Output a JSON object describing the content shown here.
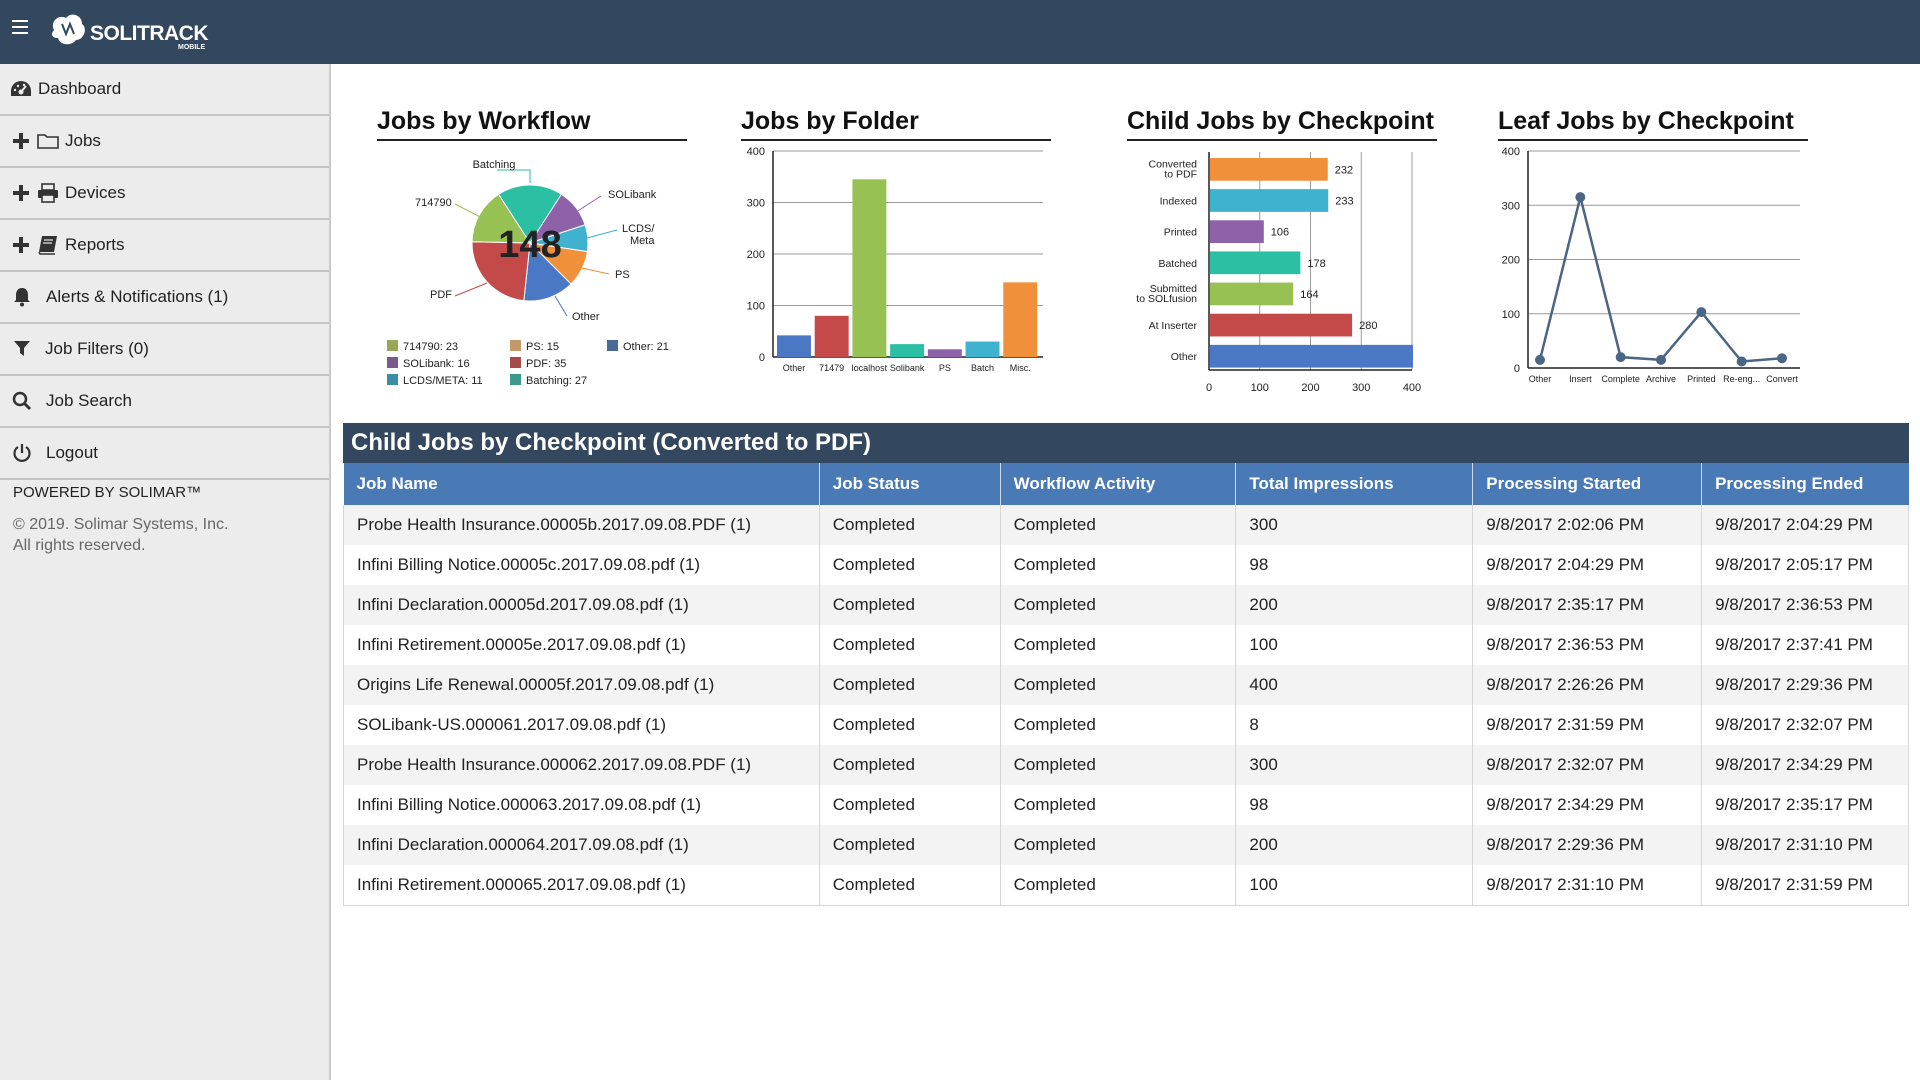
{
  "app": {
    "brand": "SOLITRACK",
    "brand_sub": "MOBILE"
  },
  "sidebar": {
    "items": [
      {
        "label": "Dashboard",
        "icon": "dashboard-icon"
      },
      {
        "label": "Jobs",
        "icon": "folder-icon"
      },
      {
        "label": "Devices",
        "icon": "printer-icon"
      },
      {
        "label": "Reports",
        "icon": "book-icon"
      },
      {
        "label": "Alerts & Notifications (1)",
        "icon": "bell-icon"
      },
      {
        "label": "Job Filters (0)",
        "icon": "filter-icon"
      },
      {
        "label": "Job Search",
        "icon": "search-icon"
      },
      {
        "label": "Logout",
        "icon": "power-icon"
      }
    ],
    "powered": "POWERED BY SOLIMAR™",
    "copyright_line1": "© 2019. Solimar Systems, Inc.",
    "copyright_line2": "All rights reserved."
  },
  "charts": {
    "workflow": {
      "title": "Jobs by Workflow",
      "center_value": "148"
    },
    "folder": {
      "title": "Jobs by Folder"
    },
    "child": {
      "title": "Child Jobs by Checkpoint"
    },
    "leaf": {
      "title": "Leaf Jobs by Checkpoint"
    }
  },
  "chart_data": [
    {
      "type": "pie",
      "title": "Jobs by Workflow",
      "center_label": "148",
      "slices": [
        {
          "label": "Batching",
          "value": 27,
          "color": "#2bbfa4"
        },
        {
          "label": "SOLibank",
          "value": 16,
          "color": "#8e62a8"
        },
        {
          "label": "LCDS/ Meta",
          "value": 11,
          "color": "#3fb2cf"
        },
        {
          "label": "PS",
          "value": 15,
          "color": "#f0903a"
        },
        {
          "label": "Other",
          "value": 21,
          "color": "#4a78c4"
        },
        {
          "label": "PDF",
          "value": 35,
          "color": "#c44a4a"
        },
        {
          "label": "714790",
          "value": 23,
          "color": "#98c154"
        }
      ],
      "legend": [
        {
          "text": "714790: 23",
          "color": "#98a857"
        },
        {
          "text": "PS: 15",
          "color": "#c4996a"
        },
        {
          "text": "Other: 21",
          "color": "#4a6a9a"
        },
        {
          "text": "SOLibank: 16",
          "color": "#7a5a8e"
        },
        {
          "text": "PDF: 35",
          "color": "#a84a4a"
        },
        {
          "text": "LCDS/META: 11",
          "color": "#3a8ea4"
        },
        {
          "text": "Batching: 27",
          "color": "#3a9a8e"
        }
      ]
    },
    {
      "type": "bar",
      "title": "Jobs by Folder",
      "categories": [
        "Other",
        "71479",
        "localhost",
        "Solibank",
        "PS",
        "Batch",
        "Misc."
      ],
      "values": [
        42,
        80,
        345,
        25,
        15,
        30,
        145
      ],
      "colors": [
        "#4a78c4",
        "#c44a4a",
        "#98c154",
        "#2bbfa4",
        "#8e62a8",
        "#3fb2cf",
        "#f0903a"
      ],
      "yticks": [
        0,
        100,
        200,
        300,
        400
      ],
      "ylim": [
        0,
        400
      ]
    },
    {
      "type": "bar",
      "orientation": "horizontal",
      "title": "Child Jobs by Checkpoint",
      "categories": [
        "Converted to PDF",
        "Indexed",
        "Printed",
        "Batched",
        "Submitted to SOLfusion",
        "At Inserter",
        "Other"
      ],
      "values": [
        232,
        233,
        106,
        178,
        164,
        280,
        400
      ],
      "value_labels": [
        "232",
        "233",
        "106",
        "178",
        "164",
        "280",
        ""
      ],
      "colors": [
        "#f0903a",
        "#3fb2cf",
        "#8e62a8",
        "#2bbfa4",
        "#98c154",
        "#c44a4a",
        "#4a78c4"
      ],
      "xticks": [
        0,
        100,
        200,
        300,
        400
      ],
      "xlim": [
        0,
        400
      ]
    },
    {
      "type": "line",
      "title": "Leaf Jobs by Checkpoint",
      "categories": [
        "Other",
        "Insert",
        "Complete",
        "Archive",
        "Printed",
        "Re-eng...",
        "Convert"
      ],
      "values": [
        15,
        315,
        20,
        15,
        103,
        12,
        18
      ],
      "yticks": [
        0,
        100,
        200,
        300,
        400
      ],
      "ylim": [
        0,
        400
      ],
      "color": "#4a6684"
    }
  ],
  "table": {
    "title": "Child Jobs by Checkpoint (Converted to PDF)",
    "headers": [
      "Job Name",
      "Job Status",
      "Workflow Activity",
      "Total Impressions",
      "Processing Started",
      "Processing Ended"
    ],
    "rows": [
      [
        "Probe Health Insurance.00005b.2017.09.08.PDF (1)",
        "Completed",
        "Completed",
        "300",
        "9/8/2017 2:02:06 PM",
        "9/8/2017 2:04:29 PM"
      ],
      [
        "Infini Billing Notice.00005c.2017.09.08.pdf (1)",
        "Completed",
        "Completed",
        "98",
        "9/8/2017 2:04:29 PM",
        "9/8/2017 2:05:17 PM"
      ],
      [
        "Infini Declaration.00005d.2017.09.08.pdf (1)",
        "Completed",
        "Completed",
        "200",
        "9/8/2017 2:35:17 PM",
        "9/8/2017 2:36:53 PM"
      ],
      [
        "Infini Retirement.00005e.2017.09.08.pdf (1)",
        "Completed",
        "Completed",
        "100",
        "9/8/2017 2:36:53 PM",
        "9/8/2017 2:37:41 PM"
      ],
      [
        "Origins Life Renewal.00005f.2017.09.08.pdf (1)",
        "Completed",
        "Completed",
        "400",
        "9/8/2017 2:26:26 PM",
        "9/8/2017 2:29:36 PM"
      ],
      [
        "SOLibank-US.000061.2017.09.08.pdf (1)",
        "Completed",
        "Completed",
        "8",
        "9/8/2017 2:31:59 PM",
        "9/8/2017 2:32:07 PM"
      ],
      [
        "Probe Health Insurance.000062.2017.09.08.PDF (1)",
        "Completed",
        "Completed",
        "300",
        "9/8/2017 2:32:07 PM",
        "9/8/2017 2:34:29 PM"
      ],
      [
        "Infini Billing Notice.000063.2017.09.08.pdf (1)",
        "Completed",
        "Completed",
        "98",
        "9/8/2017 2:34:29 PM",
        "9/8/2017 2:35:17 PM"
      ],
      [
        "Infini Declaration.000064.2017.09.08.pdf (1)",
        "Completed",
        "Completed",
        "200",
        "9/8/2017 2:29:36 PM",
        "9/8/2017 2:31:10 PM"
      ],
      [
        "Infini Retirement.000065.2017.09.08.pdf (1)",
        "Completed",
        "Completed",
        "100",
        "9/8/2017 2:31:10 PM",
        "9/8/2017 2:31:59 PM"
      ]
    ]
  }
}
